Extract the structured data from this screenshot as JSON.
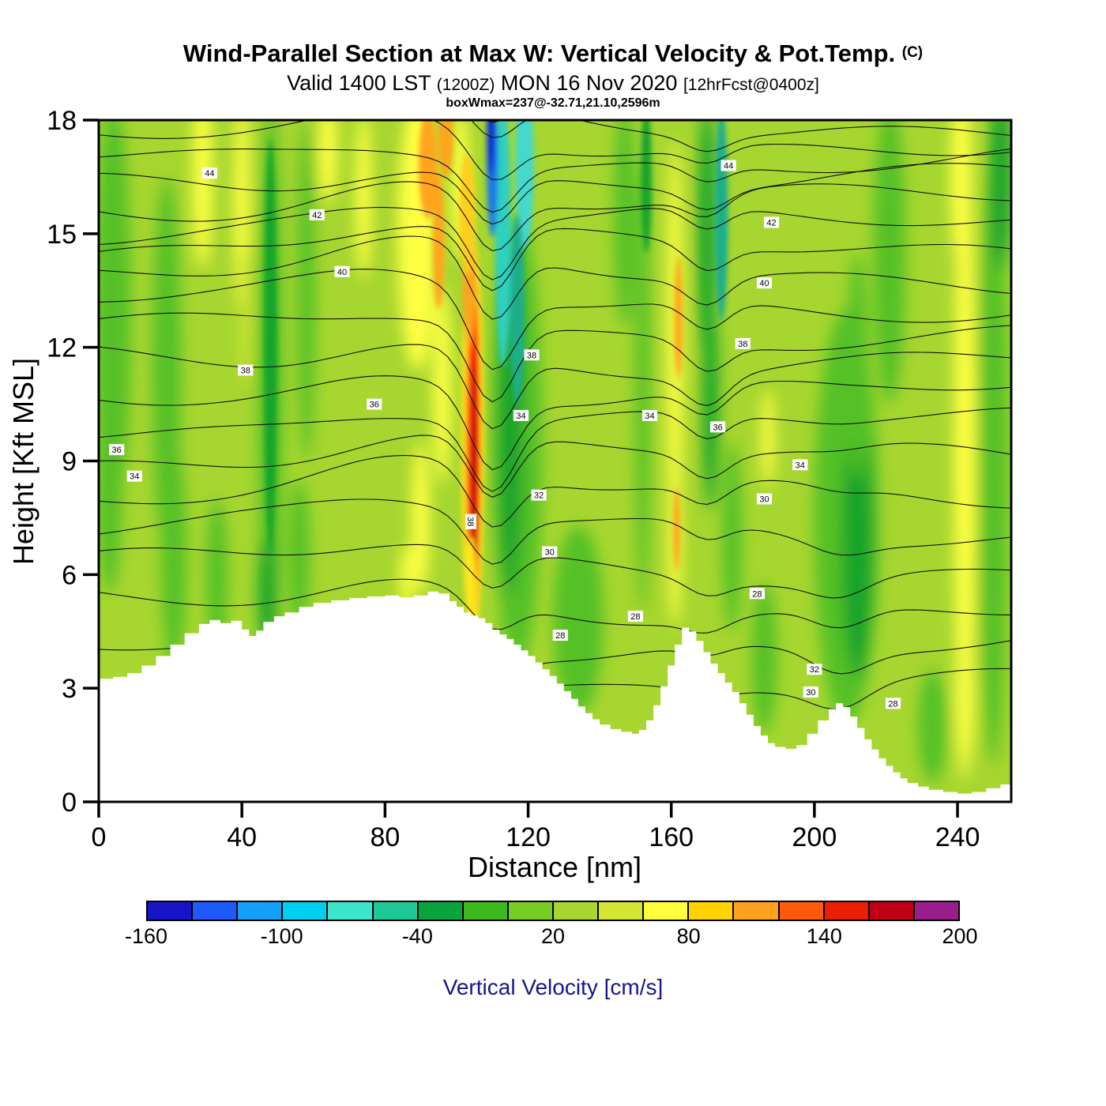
{
  "chart_data": {
    "type": "heatmap",
    "title": "Wind-Parallel Section at Max W: Vertical Velocity & Pot.Temp.",
    "title_unit": "(C)",
    "valid_prefix": "Valid 1400 LST",
    "valid_z": "(1200Z)",
    "valid_date": "MON 16 Nov 2020",
    "valid_fcst": "[12hrFcst@0400z]",
    "info_line": "boxWmax=237@-32.71,21.10,2596m",
    "xlabel": "Distance [nm]",
    "ylabel": "Height [Kft MSL]",
    "xlim": [
      0,
      255
    ],
    "ylim": [
      0,
      18
    ],
    "xticks": [
      0,
      40,
      80,
      120,
      160,
      200,
      240
    ],
    "yticks": [
      0,
      3,
      6,
      9,
      12,
      15,
      18
    ],
    "grid": false,
    "legend_position": "bottom",
    "colorbar": {
      "label": "Vertical Velocity [cm/s]",
      "label_color": "#15158c",
      "tick_labels": [
        "-160",
        "-100",
        "-40",
        "20",
        "80",
        "140",
        "200"
      ],
      "value_min": -160,
      "value_max": 200,
      "step": 20,
      "colors": [
        "#1616c8",
        "#1e5afa",
        "#14a0fa",
        "#00d0f0",
        "#3ce6cd",
        "#1ec896",
        "#0aa43c",
        "#3cb91e",
        "#78cd23",
        "#a6d62f",
        "#d2e633",
        "#ffff3c",
        "#ffd200",
        "#ffa01e",
        "#ff5a0a",
        "#eb1e00",
        "#c00014",
        "#991e8c"
      ]
    },
    "field": {
      "background": "#a6d62f",
      "blobs": [
        [
          4,
          13,
          5,
          5.5,
          "#55c125"
        ],
        [
          3,
          8.5,
          3.5,
          3,
          "#55c125"
        ],
        [
          19,
          11.5,
          4,
          5,
          "#55c125"
        ],
        [
          21,
          6.5,
          3.5,
          3,
          "#55c125"
        ],
        [
          33,
          6,
          3,
          2,
          "#55c125"
        ],
        [
          48,
          11,
          3.5,
          7.5,
          "#55c125"
        ],
        [
          48,
          12,
          1.8,
          5.5,
          "#17a42b",
          1
        ],
        [
          58,
          13.5,
          2.5,
          4.5,
          "#55c125"
        ],
        [
          47,
          5.5,
          2.5,
          1.5,
          "#17a42b"
        ],
        [
          56,
          6.5,
          3,
          2,
          "#55c125"
        ],
        [
          117,
          9.5,
          7,
          6,
          "#55c125"
        ],
        [
          115,
          10,
          3.5,
          4.5,
          "#17a42b"
        ],
        [
          134,
          4.8,
          7,
          2.5,
          "#55c125"
        ],
        [
          147,
          15.5,
          3,
          3,
          "#55c125"
        ],
        [
          152,
          11,
          2,
          6,
          "#55c125"
        ],
        [
          153,
          16.5,
          1.5,
          2,
          "#17a42b",
          1
        ],
        [
          170,
          15,
          2.5,
          3.5,
          "#17a42b"
        ],
        [
          174,
          15.5,
          1.8,
          2.8,
          "#1fae8c",
          1
        ],
        [
          171,
          10.5,
          2.2,
          2.8,
          "#17a42b"
        ],
        [
          177,
          7,
          2.8,
          2.5,
          "#55c125"
        ],
        [
          186,
          3.8,
          3.5,
          2,
          "#55c125"
        ],
        [
          209,
          7.5,
          9,
          5.5,
          "#55c125"
        ],
        [
          212,
          6.8,
          4.5,
          3.5,
          "#17a42b"
        ],
        [
          221,
          14.5,
          4.5,
          4,
          "#55c125"
        ],
        [
          212,
          11.5,
          3,
          3,
          "#55c125"
        ],
        [
          250,
          9,
          4,
          8,
          "#55c125"
        ],
        [
          252,
          16.5,
          3,
          2.5,
          "#17a42b"
        ],
        [
          233,
          2,
          4,
          1.5,
          "#55c125"
        ],
        [
          29,
          16.5,
          2.8,
          2.4,
          "#ffff42"
        ],
        [
          40,
          15.8,
          2.2,
          2.8,
          "#ffff42"
        ],
        [
          41,
          12.8,
          1.3,
          1.8,
          "#d3e734"
        ],
        [
          64,
          17.2,
          2.6,
          1.4,
          "#ffff42"
        ],
        [
          74,
          16,
          2.2,
          2.2,
          "#ffff42"
        ],
        [
          89,
          15,
          5.5,
          3.6,
          "#ffff42"
        ],
        [
          92,
          16.8,
          2.6,
          1.4,
          "#ffa41e",
          1
        ],
        [
          95,
          14.8,
          1.6,
          1.8,
          "#ffa41e",
          1
        ],
        [
          96,
          11,
          2.6,
          2.6,
          "#ffff42"
        ],
        [
          90,
          7.5,
          2.6,
          2,
          "#ffff42"
        ],
        [
          86,
          5.9,
          1.8,
          0.9,
          "#ffff42"
        ],
        [
          101,
          16.3,
          2.6,
          2,
          "#ffff42"
        ],
        [
          161,
          12,
          2.2,
          5.5,
          "#ffff42"
        ],
        [
          162,
          12.8,
          1.1,
          1.6,
          "#ffa41e",
          1
        ],
        [
          161,
          7,
          1.8,
          2.4,
          "#ffff42"
        ],
        [
          161.5,
          7.2,
          0.9,
          1.1,
          "#ffa41e",
          1
        ],
        [
          187,
          9.6,
          1.8,
          1.3,
          "#ffff42"
        ],
        [
          242,
          9,
          3,
          8.5,
          "#ffff42"
        ],
        [
          241,
          16.5,
          3,
          2.5,
          "#ffff42"
        ],
        [
          242,
          2.8,
          2.6,
          2,
          "#ffff42"
        ],
        [
          104.5,
          9.5,
          3.2,
          5.4,
          "#ffe61e",
          1
        ],
        [
          104.6,
          9.5,
          2.2,
          4.8,
          "#ffa41e",
          1
        ],
        [
          104.8,
          9.2,
          1.6,
          4.2,
          "#ff2d00",
          1
        ],
        [
          104.9,
          8.9,
          0.95,
          3.0,
          "#cc0f0f",
          1
        ],
        [
          103.5,
          13.8,
          1.8,
          1.8,
          "#ffa41e",
          1
        ],
        [
          103,
          15.5,
          2.2,
          1.6,
          "#ffcd1e",
          1
        ],
        [
          104,
          5.8,
          1.5,
          1.2,
          "#ffe61e",
          1
        ],
        [
          97,
          17.5,
          2,
          1,
          "#ffa41e",
          1
        ],
        [
          113,
          15,
          2.2,
          3.5,
          "#2fd0c0",
          1
        ],
        [
          110,
          16.9,
          1.6,
          2.0,
          "#1e78e6",
          1
        ],
        [
          109.6,
          17.7,
          1.1,
          1.2,
          "#0f2ad2",
          1
        ],
        [
          119,
          16.8,
          2.6,
          2.2,
          "#45d8cc",
          1
        ],
        [
          117,
          13,
          2,
          2.5,
          "#1fae8c",
          1
        ]
      ]
    },
    "contours": {
      "count": 21,
      "top": 18.35,
      "base": 0.4,
      "growth": 0.035,
      "ridge": [
        85,
        30,
        0.55
      ],
      "wave": [
        110,
        9,
        1.6
      ],
      "wave2": [
        170,
        8,
        0.6
      ],
      "wave3": [
        207,
        11,
        0.6
      ],
      "labels": [
        [
          "44",
          31,
          16.6
        ],
        [
          "42",
          61,
          15.5
        ],
        [
          "40",
          68,
          14.0
        ],
        [
          "38",
          41,
          11.4
        ],
        [
          "36",
          77,
          10.5
        ],
        [
          "36",
          5,
          9.3
        ],
        [
          "34",
          10,
          8.6
        ],
        [
          "38",
          104,
          7.4,
          90
        ],
        [
          "38",
          121,
          11.8
        ],
        [
          "34",
          118,
          10.2
        ],
        [
          "32",
          123,
          8.1
        ],
        [
          "30",
          126,
          6.6
        ],
        [
          "28",
          129,
          4.4
        ],
        [
          "44",
          176,
          16.8
        ],
        [
          "42",
          188,
          15.3
        ],
        [
          "40",
          186,
          13.7
        ],
        [
          "38",
          180,
          12.1
        ],
        [
          "36",
          173,
          9.9
        ],
        [
          "34",
          196,
          8.9
        ],
        [
          "30",
          186,
          8.0
        ],
        [
          "32",
          200,
          3.5
        ],
        [
          "30",
          199,
          2.9
        ],
        [
          "28",
          222,
          2.6
        ],
        [
          "28",
          184,
          5.5
        ],
        [
          "34",
          154,
          10.2
        ],
        [
          "28",
          150,
          4.9
        ]
      ]
    },
    "terrain": [
      [
        0,
        3.25
      ],
      [
        4,
        3.3
      ],
      [
        8,
        3.4
      ],
      [
        12,
        3.6
      ],
      [
        16,
        3.85
      ],
      [
        20,
        4.15
      ],
      [
        24,
        4.45
      ],
      [
        28,
        4.7
      ],
      [
        31,
        4.8
      ],
      [
        34,
        4.72
      ],
      [
        37,
        4.78
      ],
      [
        40,
        4.55
      ],
      [
        42,
        4.38
      ],
      [
        44,
        4.52
      ],
      [
        46,
        4.75
      ],
      [
        49,
        4.9
      ],
      [
        52,
        5.0
      ],
      [
        56,
        5.15
      ],
      [
        60,
        5.25
      ],
      [
        65,
        5.32
      ],
      [
        70,
        5.38
      ],
      [
        75,
        5.42
      ],
      [
        80,
        5.45
      ],
      [
        84,
        5.4
      ],
      [
        88,
        5.45
      ],
      [
        92,
        5.55
      ],
      [
        95,
        5.5
      ],
      [
        98,
        5.3
      ],
      [
        100,
        5.15
      ],
      [
        102,
        5.0
      ],
      [
        104,
        4.92
      ],
      [
        106,
        4.85
      ],
      [
        108,
        4.72
      ],
      [
        110,
        4.55
      ],
      [
        112,
        4.42
      ],
      [
        114,
        4.3
      ],
      [
        116,
        4.15
      ],
      [
        118,
        4.0
      ],
      [
        120,
        3.85
      ],
      [
        122,
        3.68
      ],
      [
        124,
        3.5
      ],
      [
        126,
        3.32
      ],
      [
        128,
        3.12
      ],
      [
        130,
        2.92
      ],
      [
        132,
        2.72
      ],
      [
        134,
        2.52
      ],
      [
        136,
        2.34
      ],
      [
        138,
        2.18
      ],
      [
        140,
        2.04
      ],
      [
        143,
        1.92
      ],
      [
        146,
        1.85
      ],
      [
        149,
        1.8
      ],
      [
        151,
        1.9
      ],
      [
        153,
        2.15
      ],
      [
        155,
        2.55
      ],
      [
        157,
        3.05
      ],
      [
        159,
        3.6
      ],
      [
        161,
        4.15
      ],
      [
        163,
        4.6
      ],
      [
        165,
        4.5
      ],
      [
        167,
        4.25
      ],
      [
        169,
        3.95
      ],
      [
        171,
        3.65
      ],
      [
        173,
        3.4
      ],
      [
        175,
        3.15
      ],
      [
        177,
        2.9
      ],
      [
        179,
        2.6
      ],
      [
        181,
        2.3
      ],
      [
        183,
        2.0
      ],
      [
        185,
        1.75
      ],
      [
        187,
        1.55
      ],
      [
        189,
        1.45
      ],
      [
        192,
        1.4
      ],
      [
        195,
        1.5
      ],
      [
        198,
        1.8
      ],
      [
        201,
        2.15
      ],
      [
        204,
        2.45
      ],
      [
        206,
        2.6
      ],
      [
        208,
        2.5
      ],
      [
        210,
        2.25
      ],
      [
        212,
        1.95
      ],
      [
        214,
        1.65
      ],
      [
        216,
        1.38
      ],
      [
        218,
        1.15
      ],
      [
        220,
        0.95
      ],
      [
        222,
        0.78
      ],
      [
        224,
        0.62
      ],
      [
        226,
        0.5
      ],
      [
        229,
        0.4
      ],
      [
        232,
        0.32
      ],
      [
        236,
        0.26
      ],
      [
        240,
        0.22
      ],
      [
        244,
        0.26
      ],
      [
        248,
        0.36
      ],
      [
        252,
        0.46
      ],
      [
        255,
        0.52
      ]
    ]
  }
}
